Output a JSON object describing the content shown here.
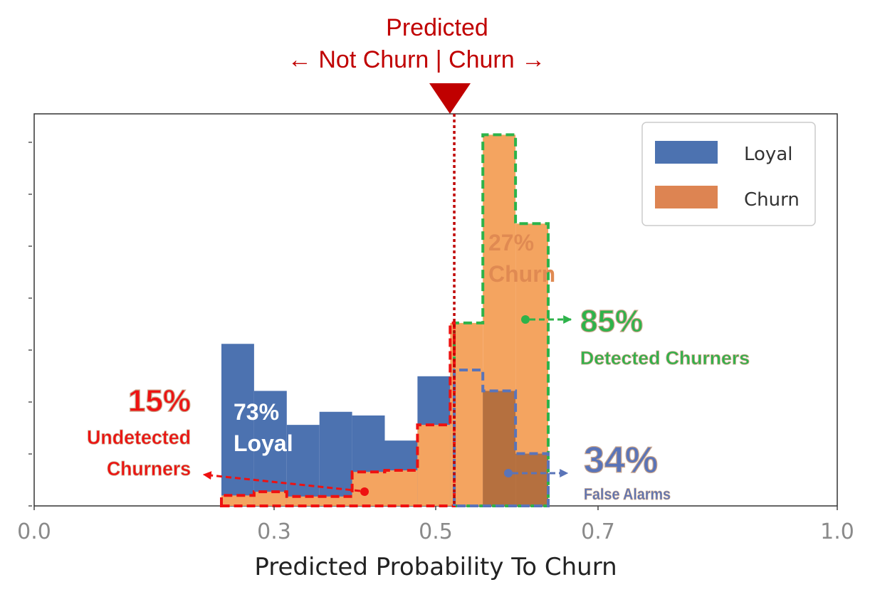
{
  "chart_data": {
    "type": "histogram",
    "header": {
      "line1": "Predicted",
      "line2": "← Not Churn | Churn →"
    },
    "xlabel": "Predicted Probability To Churn",
    "x_ticks": [
      "0.0",
      "0.3",
      "0.5",
      "0.7",
      "1.0"
    ],
    "x_tick_values": [
      0.0,
      0.3,
      0.5,
      0.7,
      1.0
    ],
    "xlim": [
      0.0,
      1.0
    ],
    "ylim": [
      0,
      75
    ],
    "threshold": 0.52,
    "legend_position": "top-right",
    "series": [
      {
        "name": "Loyal",
        "color": "#4c72b0",
        "bins": [
          {
            "x0": 0.235,
            "x1": 0.275,
            "y": 31
          },
          {
            "x0": 0.275,
            "x1": 0.315,
            "y": 22
          },
          {
            "x0": 0.315,
            "x1": 0.355,
            "y": 15.5
          },
          {
            "x0": 0.355,
            "x1": 0.395,
            "y": 18
          },
          {
            "x0": 0.395,
            "x1": 0.435,
            "y": 17.3
          },
          {
            "x0": 0.435,
            "x1": 0.475,
            "y": 12.5
          },
          {
            "x0": 0.475,
            "x1": 0.515,
            "y": 24.8
          },
          {
            "x0": 0.515,
            "x1": 0.555,
            "y": 26
          },
          {
            "x0": 0.555,
            "x1": 0.595,
            "y": 22
          },
          {
            "x0": 0.595,
            "x1": 0.635,
            "y": 10
          }
        ]
      },
      {
        "name": "Churn",
        "color": "#dd8452",
        "bins": [
          {
            "x0": 0.235,
            "x1": 0.275,
            "y": 2
          },
          {
            "x0": 0.275,
            "x1": 0.315,
            "y": 2.7
          },
          {
            "x0": 0.315,
            "x1": 0.355,
            "y": 1.8
          },
          {
            "x0": 0.355,
            "x1": 0.395,
            "y": 1.8
          },
          {
            "x0": 0.395,
            "x1": 0.435,
            "y": 6.5
          },
          {
            "x0": 0.435,
            "x1": 0.475,
            "y": 6.8
          },
          {
            "x0": 0.475,
            "x1": 0.515,
            "y": 15.5
          },
          {
            "x0": 0.515,
            "x1": 0.555,
            "y": 35
          },
          {
            "x0": 0.555,
            "x1": 0.595,
            "y": 71
          },
          {
            "x0": 0.595,
            "x1": 0.635,
            "y": 54
          }
        ]
      }
    ],
    "annotations": [
      {
        "id": "loyal",
        "text_pct": "73%",
        "text_label": "Loyal",
        "color": "#ffffff"
      },
      {
        "id": "churn",
        "text_pct": "27%",
        "text_label": "Churn",
        "color": "#e08a52"
      },
      {
        "id": "detected",
        "pct": "85%",
        "label": "Detected Churners",
        "color": "#2db34a"
      },
      {
        "id": "undetected",
        "pct": "15%",
        "label_line1": "Undetected",
        "label_line2": "Churners",
        "color": "#ee1111"
      },
      {
        "id": "false_alarms",
        "pct": "34%",
        "label": "False Alarms",
        "color": "#5a74b8"
      }
    ]
  }
}
